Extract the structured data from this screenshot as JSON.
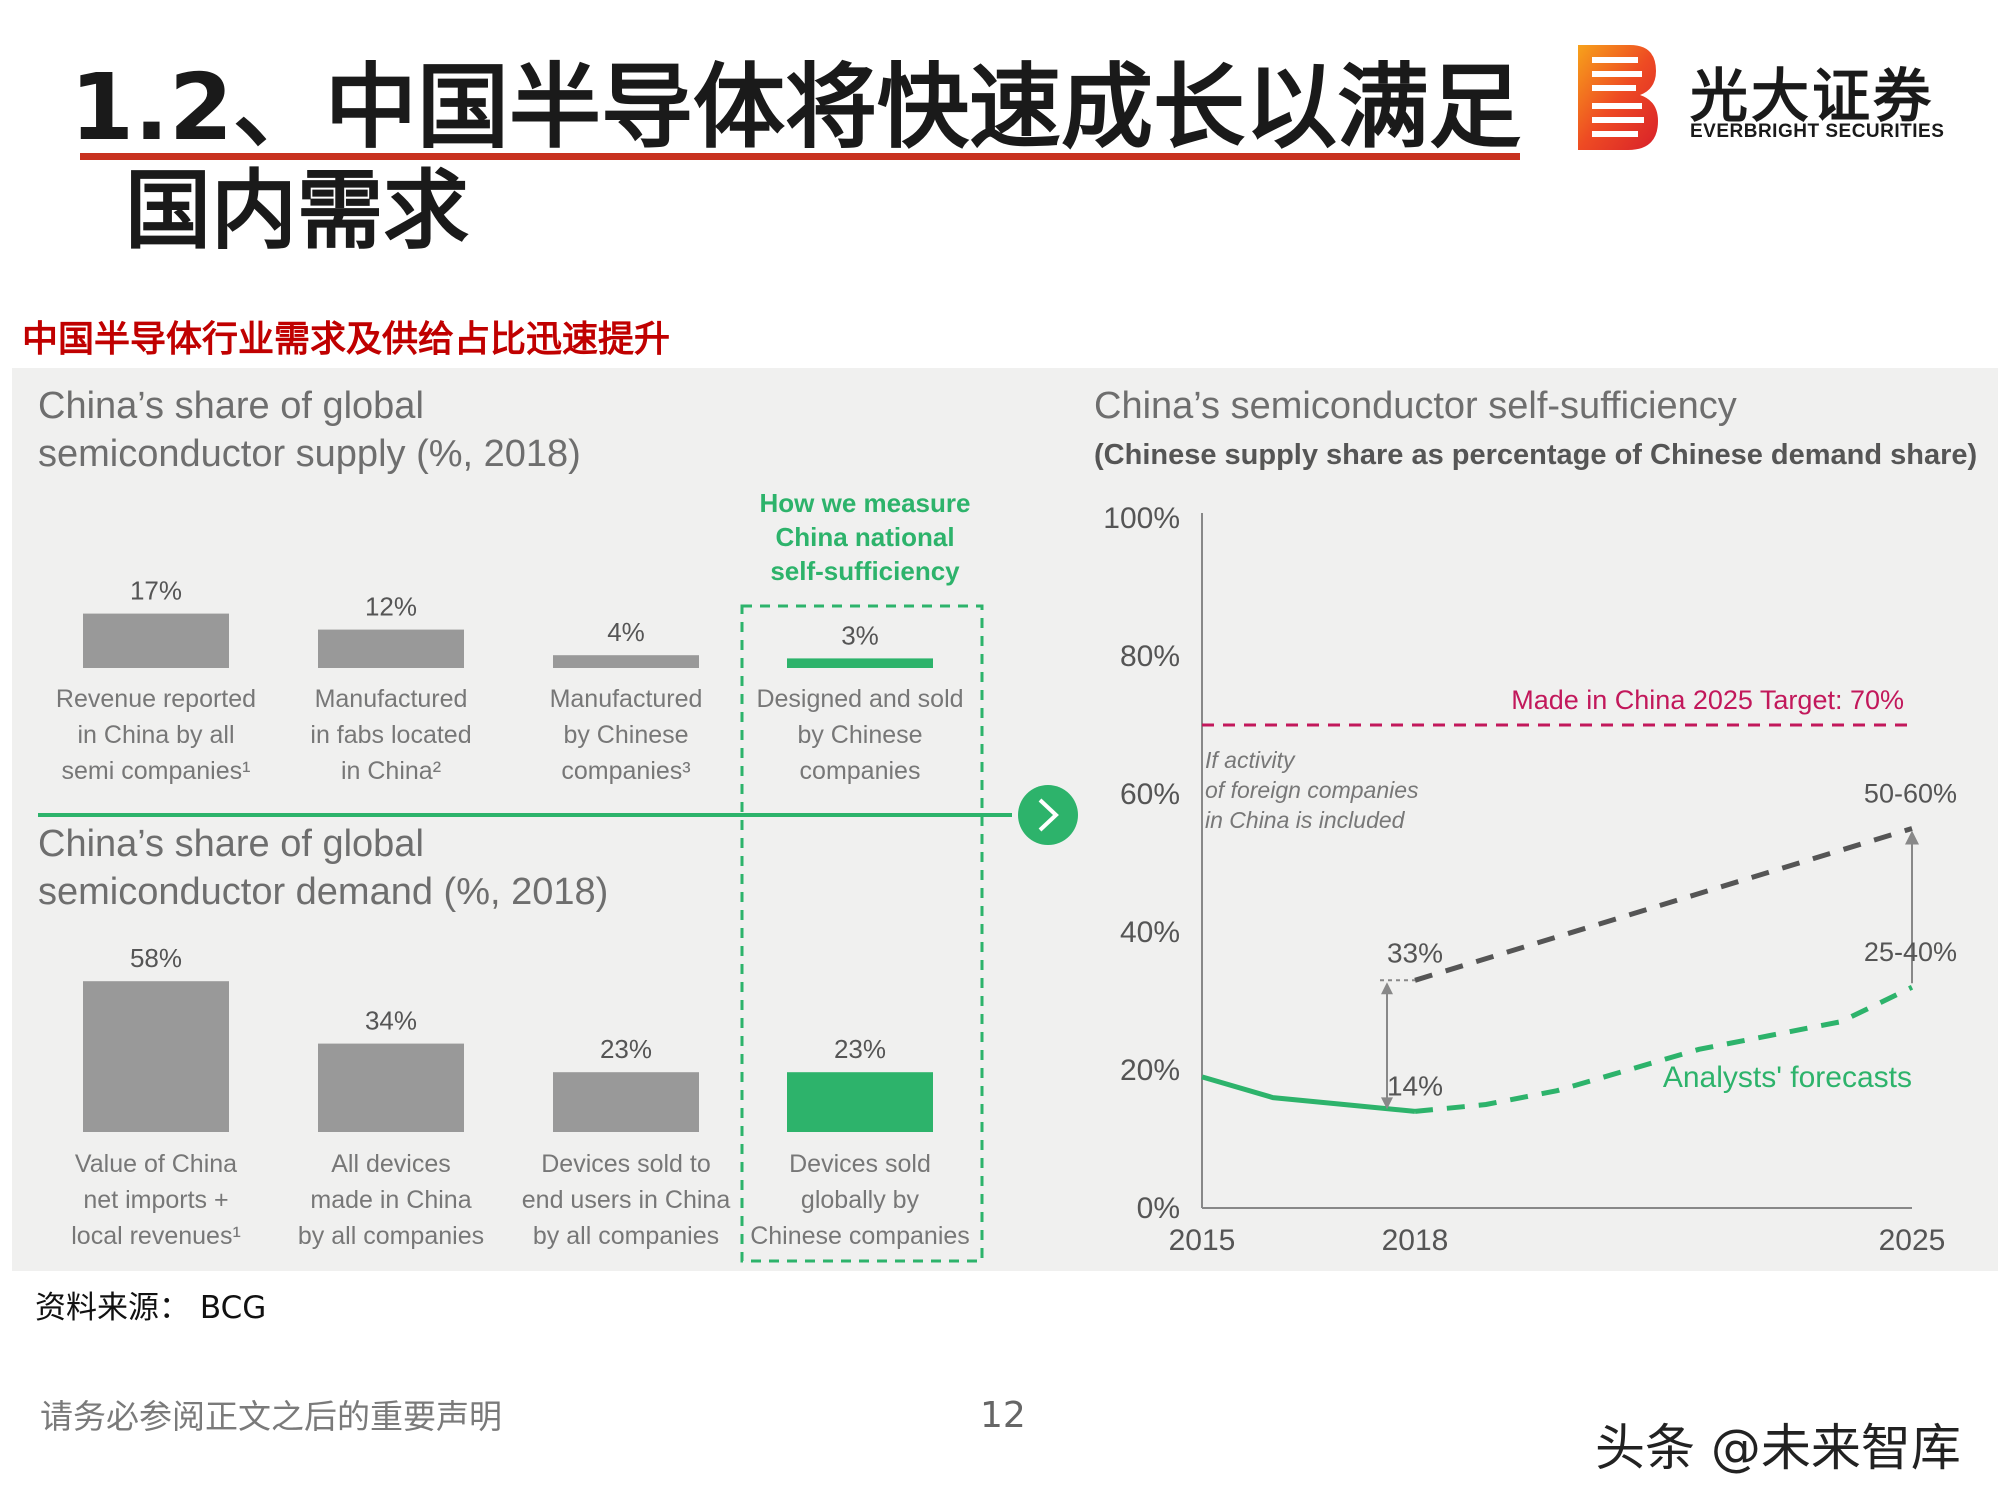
{
  "header": {
    "title_line1": "1.2、中国半导体将快速成长以满足",
    "title_line2": "国内需求"
  },
  "logo": {
    "cn": "光大证券",
    "en": "EVERBRIGHT SECURITIES"
  },
  "subtitle": "中国半导体行业需求及供给占比迅速提升",
  "colors": {
    "accent_red": "#c8321f",
    "bar_gray": "#999999",
    "bar_green": "#2db36b",
    "target_pink": "#c2185b",
    "forecast_gray": "#555555"
  },
  "left": {
    "supply_title": [
      "China’s share of global",
      "semiconductor supply (%, 2018)"
    ],
    "demand_title": [
      "China’s share of global",
      "semiconductor demand (%, 2018)"
    ],
    "measure_note": [
      "How we measure",
      "China national",
      "self-sufficiency"
    ]
  },
  "chart_data": [
    {
      "type": "bar",
      "title": "China’s share of global semiconductor supply (%, 2018)",
      "categories": [
        "Revenue reported in China by all semi companies¹",
        "Manufactured in fabs located in China²",
        "Manufactured by Chinese companies³",
        "Designed and sold by Chinese companies"
      ],
      "category_lines": [
        [
          "Revenue reported",
          "in China by all",
          "semi companies¹"
        ],
        [
          "Manufactured",
          "in fabs located",
          "in China²"
        ],
        [
          "Manufactured",
          "by Chinese",
          "companies³"
        ],
        [
          "Designed and sold",
          "by Chinese",
          "companies"
        ]
      ],
      "values": [
        17,
        12,
        4,
        3
      ],
      "value_labels": [
        "17%",
        "12%",
        "4%",
        "3%"
      ],
      "highlight_index": 3
    },
    {
      "type": "bar",
      "title": "China’s share of global semiconductor demand (%, 2018)",
      "categories": [
        "Value of China net imports + local revenues¹",
        "All devices made in China by all companies",
        "Devices sold to end users in China by all companies",
        "Devices sold globally by Chinese companies"
      ],
      "category_lines": [
        [
          "Value of China",
          "net imports +",
          "local revenues¹"
        ],
        [
          "All devices",
          "made in China",
          "by all companies"
        ],
        [
          "Devices sold to",
          "end users in China",
          "by all companies"
        ],
        [
          "Devices sold",
          "globally by",
          "Chinese companies"
        ]
      ],
      "values": [
        58,
        34,
        23,
        23
      ],
      "value_labels": [
        "58%",
        "34%",
        "23%",
        "23%"
      ],
      "highlight_index": 3
    },
    {
      "type": "line",
      "title": "China’s semiconductor self-sufficiency",
      "subtitle": "(Chinese supply share as percentage of Chinese demand share)",
      "y_ticks": [
        "0%",
        "20%",
        "40%",
        "60%",
        "80%",
        "100%"
      ],
      "ylim": [
        0,
        100
      ],
      "xlim": [
        2015,
        2025
      ],
      "x_ticks": [
        "2015",
        "2018",
        "2025"
      ],
      "target": {
        "value": 70,
        "label": "Made in China 2025 Target: 70%"
      },
      "series": [
        {
          "name": "",
          "style": "solid-green",
          "x": [
            2015,
            2016,
            2017,
            2018
          ],
          "y": [
            19,
            16,
            15,
            14
          ]
        },
        {
          "name": "Analysts' forecasts",
          "style": "dashed-green",
          "x": [
            2018,
            2019,
            2020,
            2021,
            2022,
            2023,
            2024,
            2025
          ],
          "y": [
            14,
            15,
            17,
            20,
            23,
            25,
            27,
            32
          ]
        },
        {
          "name": "",
          "style": "dashed-gray",
          "x": [
            2018,
            2025
          ],
          "y": [
            33,
            55
          ]
        }
      ],
      "annotations": {
        "label_33": "33%",
        "label_14": "14%",
        "label_5060": "50-60%",
        "label_2540": "25-40%",
        "foreign_note": [
          "If activity",
          "of foreign companies",
          "in China is included"
        ],
        "forecast_label": "Analysts' forecasts"
      }
    }
  ],
  "footer": {
    "source": "资料来源： BCG",
    "disclaimer": "请务必参阅正文之后的重要声明",
    "page": "12",
    "watermark": "头条 @未来智库"
  }
}
